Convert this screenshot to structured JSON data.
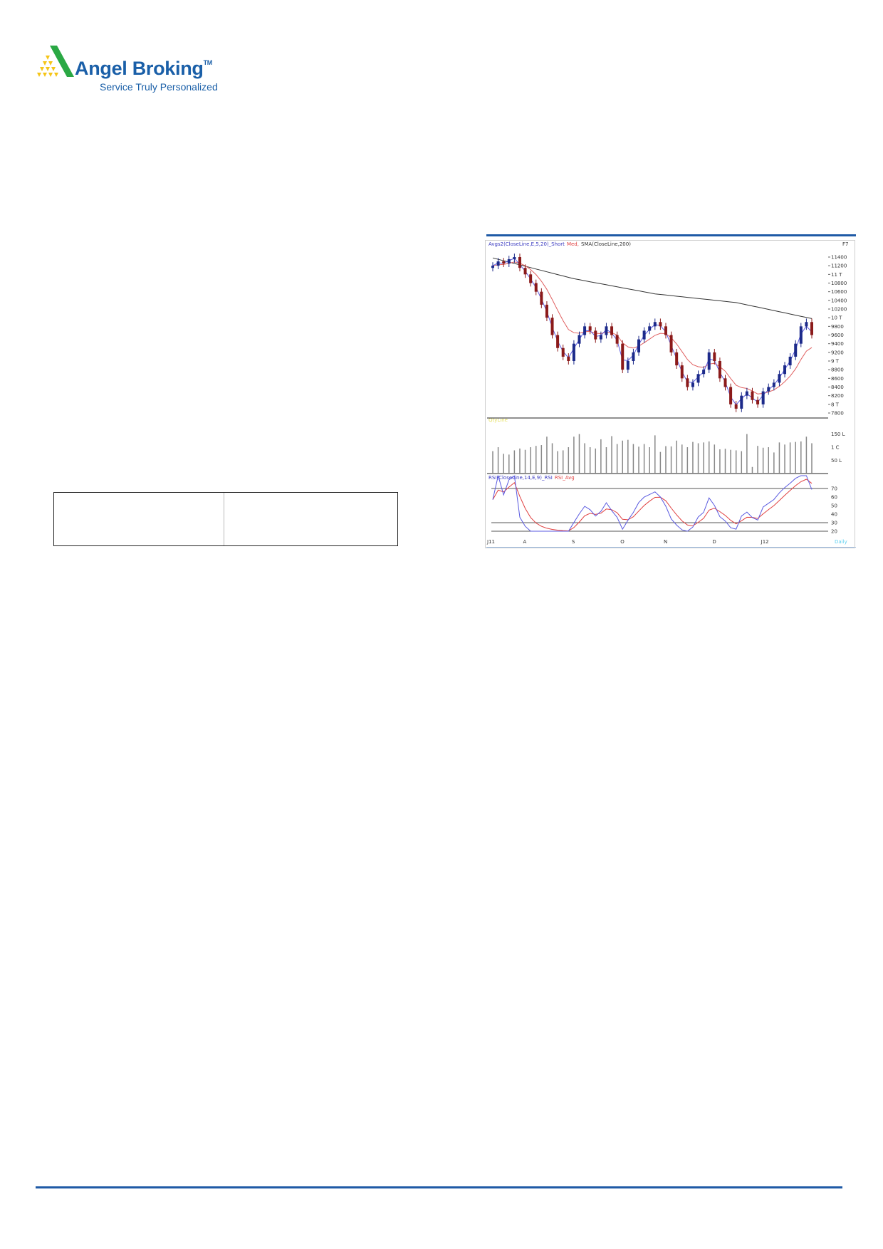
{
  "header": {
    "brand": "Angel Broking",
    "trademark": "TM",
    "tagline": "Service Truly Personalized",
    "colors": {
      "brand_blue": "#1a5fa8",
      "logo_green": "#2aa844",
      "logo_yellow": "#f5c518",
      "rule_blue": "#1f5aa6"
    }
  },
  "chart_data": {
    "type": "candlestick",
    "panels": [
      "price",
      "volume",
      "rsi"
    ],
    "price_legend": {
      "avg": "Avgs2(CloseLine,E,5,20)_Short",
      "med": "Med,",
      "sma": "SMA(CloseLine,200)"
    },
    "corner_label": "F7",
    "volume_legend": "QtyLine",
    "rsi_legend": {
      "rsi": "RSI(CloseLine,14,E,9)_RSI",
      "avg": "RSI_Avg"
    },
    "period_label": "Daily",
    "price_ticks": [
      "11400",
      "11200",
      "11 T",
      "10800",
      "10600",
      "10400",
      "10200",
      "10 T",
      "9800",
      "9600",
      "9400",
      "9200",
      "9 T",
      "8800",
      "8600",
      "8400",
      "8200",
      "8 T",
      "7800"
    ],
    "price_range": [
      7800,
      11400
    ],
    "volume_ticks": [
      "150 L",
      "1 C",
      "50 L"
    ],
    "volume_tick_values": [
      150,
      100,
      50
    ],
    "rsi_ticks": [
      "70",
      "60",
      "50",
      "40",
      "30",
      "20"
    ],
    "rsi_range": [
      20,
      80
    ],
    "x_ticks": [
      {
        "label": "J11",
        "index": 0
      },
      {
        "label": "A",
        "index": 6
      },
      {
        "label": "S",
        "index": 15
      },
      {
        "label": "O",
        "index": 24
      },
      {
        "label": "N",
        "index": 32
      },
      {
        "label": "D",
        "index": 41
      },
      {
        "label": "J12",
        "index": 50
      }
    ],
    "close": [
      11200,
      11300,
      11250,
      11350,
      11400,
      11150,
      11000,
      10800,
      10600,
      10300,
      10000,
      9600,
      9300,
      9100,
      9000,
      9400,
      9600,
      9800,
      9700,
      9500,
      9600,
      9800,
      9600,
      9400,
      8800,
      9000,
      9200,
      9500,
      9700,
      9800,
      9900,
      9800,
      9600,
      9200,
      8900,
      8600,
      8400,
      8500,
      8700,
      8800,
      9200,
      9000,
      8600,
      8400,
      8000,
      7900,
      8200,
      8300,
      8100,
      8000,
      8300,
      8400,
      8500,
      8700,
      8900,
      9100,
      9400,
      9800,
      9900,
      9600
    ],
    "sma200_anchors": [
      {
        "index": 0,
        "value": 11380
      },
      {
        "index": 15,
        "value": 10900
      },
      {
        "index": 30,
        "value": 10550
      },
      {
        "index": 45,
        "value": 10350
      },
      {
        "index": 59,
        "value": 9980
      }
    ],
    "volume": [
      85,
      100,
      75,
      72,
      88,
      95,
      90,
      100,
      105,
      108,
      140,
      115,
      85,
      88,
      100,
      140,
      150,
      115,
      100,
      95,
      130,
      100,
      142,
      112,
      125,
      128,
      112,
      102,
      112,
      100,
      145,
      82,
      104,
      103,
      125,
      110,
      100,
      120,
      115,
      118,
      122,
      110,
      92,
      94,
      90,
      88,
      85,
      150,
      25,
      105,
      98,
      100,
      80,
      118,
      110,
      118,
      120,
      122,
      140,
      115
    ],
    "colors": {
      "up": "#1c2a8a",
      "down": "#8b1a1a",
      "ema5": "#5a5ae0",
      "ema20": "#e06060",
      "sma200": "#333333",
      "rsi": "#5a5ae0",
      "rsi_avg": "#e04040",
      "volume": "#888888"
    }
  }
}
